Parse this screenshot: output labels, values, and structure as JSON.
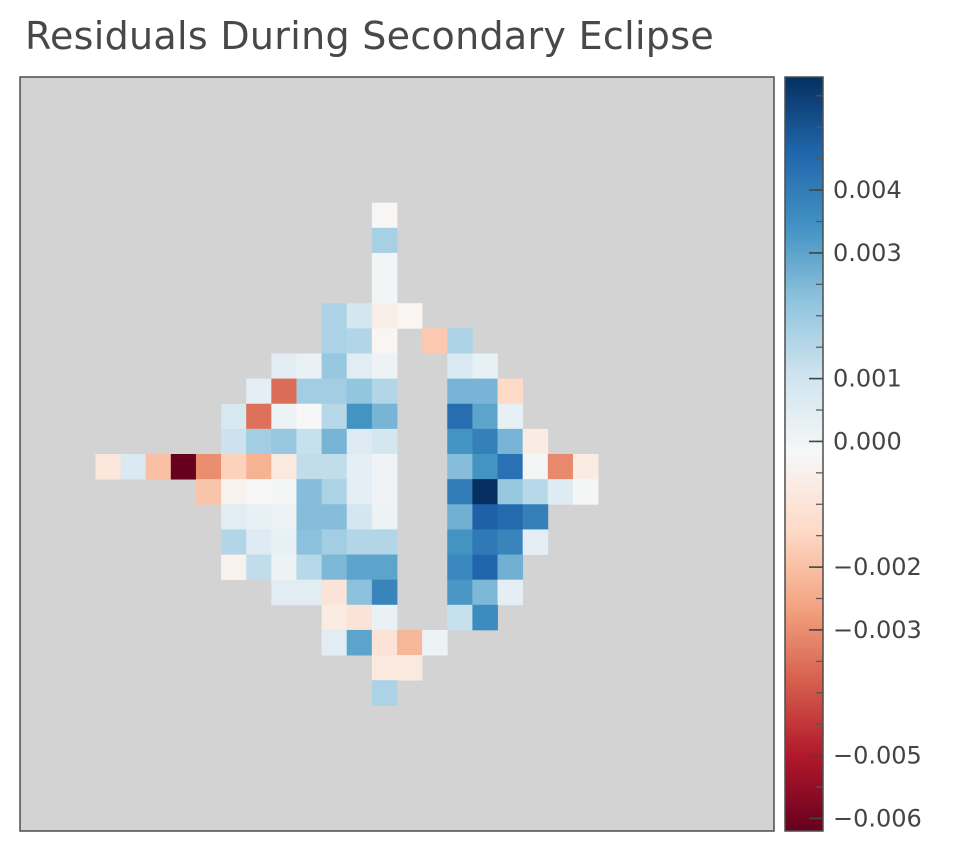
{
  "chart_data": {
    "type": "heatmap",
    "title": "Residuals During Secondary Eclipse",
    "background_color": "#d3d3d3",
    "colormap": "RdBu",
    "vmin": -0.0062,
    "vmax": 0.0058,
    "colorbar": {
      "tick_labels": [
        "0.004",
        "0.003",
        "0.001",
        "0.000",
        "−0.002",
        "−0.003",
        "−0.005",
        "−0.006"
      ],
      "tick_values": [
        0.004,
        0.003,
        0.001,
        0.0,
        -0.002,
        -0.003,
        -0.005,
        -0.006
      ]
    },
    "grid_size": 30,
    "cells": [
      {
        "row": 5,
        "col": 14,
        "value": -0.00025
      },
      {
        "row": 6,
        "col": 14,
        "value": 0.0018
      },
      {
        "row": 7,
        "col": 14,
        "value": -5e-05
      },
      {
        "row": 8,
        "col": 14,
        "value": -5e-05
      },
      {
        "row": 9,
        "col": 12,
        "value": 0.0017
      },
      {
        "row": 9,
        "col": 13,
        "value": 0.0009
      },
      {
        "row": 9,
        "col": 14,
        "value": -0.0006
      },
      {
        "row": 9,
        "col": 15,
        "value": -0.0003
      },
      {
        "row": 10,
        "col": 12,
        "value": 0.0017
      },
      {
        "row": 10,
        "col": 13,
        "value": 0.0016
      },
      {
        "row": 10,
        "col": 14,
        "value": -0.0003
      },
      {
        "row": 10,
        "col": 16,
        "value": -0.0018
      },
      {
        "row": 10,
        "col": 17,
        "value": 0.0017
      },
      {
        "row": 11,
        "col": 10,
        "value": 0.0005
      },
      {
        "row": 11,
        "col": 11,
        "value": 0.0002
      },
      {
        "row": 11,
        "col": 12,
        "value": 0.0021
      },
      {
        "row": 11,
        "col": 13,
        "value": 0.0005
      },
      {
        "row": 11,
        "col": 14,
        "value": 0.0001
      },
      {
        "row": 11,
        "col": 17,
        "value": 0.0007
      },
      {
        "row": 11,
        "col": 18,
        "value": 0.0003
      },
      {
        "row": 12,
        "col": 9,
        "value": 0.0004
      },
      {
        "row": 12,
        "col": 10,
        "value": -0.0036
      },
      {
        "row": 12,
        "col": 11,
        "value": 0.0019
      },
      {
        "row": 12,
        "col": 12,
        "value": 0.0019
      },
      {
        "row": 12,
        "col": 13,
        "value": 0.0022
      },
      {
        "row": 12,
        "col": 14,
        "value": 0.0016
      },
      {
        "row": 12,
        "col": 17,
        "value": 0.0026
      },
      {
        "row": 12,
        "col": 18,
        "value": 0.0026
      },
      {
        "row": 12,
        "col": 19,
        "value": -0.0014
      },
      {
        "row": 13,
        "col": 8,
        "value": 0.0008
      },
      {
        "row": 13,
        "col": 9,
        "value": -0.0035
      },
      {
        "row": 13,
        "col": 10,
        "value": 0.0001
      },
      {
        "row": 13,
        "col": 11,
        "value": -0.0002
      },
      {
        "row": 13,
        "col": 12,
        "value": 0.0015
      },
      {
        "row": 13,
        "col": 13,
        "value": 0.0034
      },
      {
        "row": 13,
        "col": 14,
        "value": 0.0026
      },
      {
        "row": 13,
        "col": 17,
        "value": 0.0044
      },
      {
        "row": 13,
        "col": 18,
        "value": 0.003
      },
      {
        "row": 13,
        "col": 19,
        "value": 0.0003
      },
      {
        "row": 14,
        "col": 8,
        "value": 0.0011
      },
      {
        "row": 14,
        "col": 9,
        "value": 0.0019
      },
      {
        "row": 14,
        "col": 10,
        "value": 0.0021
      },
      {
        "row": 14,
        "col": 11,
        "value": 0.0012
      },
      {
        "row": 14,
        "col": 12,
        "value": 0.0026
      },
      {
        "row": 14,
        "col": 13,
        "value": 0.0006
      },
      {
        "row": 14,
        "col": 14,
        "value": 0.0009
      },
      {
        "row": 14,
        "col": 17,
        "value": 0.0034
      },
      {
        "row": 14,
        "col": 18,
        "value": 0.0039
      },
      {
        "row": 14,
        "col": 19,
        "value": 0.0026
      },
      {
        "row": 14,
        "col": 20,
        "value": -0.0007
      },
      {
        "row": 15,
        "col": 3,
        "value": -0.0009
      },
      {
        "row": 15,
        "col": 4,
        "value": 0.0007
      },
      {
        "row": 15,
        "col": 5,
        "value": -0.002
      },
      {
        "row": 15,
        "col": 6,
        "value": -0.0062
      },
      {
        "row": 15,
        "col": 7,
        "value": -0.003
      },
      {
        "row": 15,
        "col": 8,
        "value": -0.0016
      },
      {
        "row": 15,
        "col": 9,
        "value": -0.0023
      },
      {
        "row": 15,
        "col": 10,
        "value": -0.0008
      },
      {
        "row": 15,
        "col": 11,
        "value": 0.0013
      },
      {
        "row": 15,
        "col": 12,
        "value": 0.0013
      },
      {
        "row": 15,
        "col": 13,
        "value": 0.0004
      },
      {
        "row": 15,
        "col": 14,
        "value": 5e-05
      },
      {
        "row": 15,
        "col": 17,
        "value": 0.0024
      },
      {
        "row": 15,
        "col": 18,
        "value": 0.0034
      },
      {
        "row": 15,
        "col": 19,
        "value": 0.0043
      },
      {
        "row": 15,
        "col": 20,
        "value": -0.0001
      },
      {
        "row": 15,
        "col": 21,
        "value": -0.0031
      },
      {
        "row": 15,
        "col": 22,
        "value": -0.0007
      },
      {
        "row": 16,
        "col": 7,
        "value": -0.0019
      },
      {
        "row": 16,
        "col": 8,
        "value": -0.0004
      },
      {
        "row": 16,
        "col": 9,
        "value": -0.0002
      },
      {
        "row": 16,
        "col": 10,
        "value": -0.0001
      },
      {
        "row": 16,
        "col": 11,
        "value": 0.0024
      },
      {
        "row": 16,
        "col": 12,
        "value": 0.0017
      },
      {
        "row": 16,
        "col": 13,
        "value": 0.0004
      },
      {
        "row": 16,
        "col": 14,
        "value": 5e-05
      },
      {
        "row": 16,
        "col": 17,
        "value": 0.004
      },
      {
        "row": 16,
        "col": 18,
        "value": 0.0058
      },
      {
        "row": 16,
        "col": 19,
        "value": 0.0021
      },
      {
        "row": 16,
        "col": 20,
        "value": 0.0015
      },
      {
        "row": 16,
        "col": 21,
        "value": 0.0006
      },
      {
        "row": 16,
        "col": 22,
        "value": -0.0001
      },
      {
        "row": 17,
        "col": 8,
        "value": 0.0005
      },
      {
        "row": 17,
        "col": 9,
        "value": 0.0003
      },
      {
        "row": 17,
        "col": 10,
        "value": 0.0001
      },
      {
        "row": 17,
        "col": 11,
        "value": 0.0024
      },
      {
        "row": 17,
        "col": 12,
        "value": 0.0024
      },
      {
        "row": 17,
        "col": 13,
        "value": 0.0009
      },
      {
        "row": 17,
        "col": 14,
        "value": 0.0001
      },
      {
        "row": 17,
        "col": 17,
        "value": 0.0027
      },
      {
        "row": 17,
        "col": 18,
        "value": 0.0047
      },
      {
        "row": 17,
        "col": 19,
        "value": 0.0045
      },
      {
        "row": 17,
        "col": 20,
        "value": 0.0039
      },
      {
        "row": 18,
        "col": 8,
        "value": 0.0016
      },
      {
        "row": 18,
        "col": 9,
        "value": 0.0006
      },
      {
        "row": 18,
        "col": 10,
        "value": 0.0003
      },
      {
        "row": 18,
        "col": 11,
        "value": 0.0023
      },
      {
        "row": 18,
        "col": 12,
        "value": 0.0019
      },
      {
        "row": 18,
        "col": 13,
        "value": 0.0016
      },
      {
        "row": 18,
        "col": 14,
        "value": 0.0016
      },
      {
        "row": 18,
        "col": 17,
        "value": 0.0034
      },
      {
        "row": 18,
        "col": 18,
        "value": 0.0041
      },
      {
        "row": 18,
        "col": 19,
        "value": 0.0038
      },
      {
        "row": 18,
        "col": 20,
        "value": 0.0004
      },
      {
        "row": 19,
        "col": 8,
        "value": -0.0004
      },
      {
        "row": 19,
        "col": 9,
        "value": 0.0013
      },
      {
        "row": 19,
        "col": 10,
        "value": 0.0001
      },
      {
        "row": 19,
        "col": 11,
        "value": 0.0015
      },
      {
        "row": 19,
        "col": 12,
        "value": 0.0025
      },
      {
        "row": 19,
        "col": 13,
        "value": 0.003
      },
      {
        "row": 19,
        "col": 14,
        "value": 0.003
      },
      {
        "row": 19,
        "col": 17,
        "value": 0.0037
      },
      {
        "row": 19,
        "col": 18,
        "value": 0.0046
      },
      {
        "row": 19,
        "col": 19,
        "value": 0.0027
      },
      {
        "row": 20,
        "col": 10,
        "value": 0.0005
      },
      {
        "row": 20,
        "col": 11,
        "value": 0.0005
      },
      {
        "row": 20,
        "col": 12,
        "value": -0.001
      },
      {
        "row": 20,
        "col": 13,
        "value": 0.0023
      },
      {
        "row": 20,
        "col": 14,
        "value": 0.0038
      },
      {
        "row": 20,
        "col": 17,
        "value": 0.0033
      },
      {
        "row": 20,
        "col": 18,
        "value": 0.0025
      },
      {
        "row": 20,
        "col": 19,
        "value": 0.0004
      },
      {
        "row": 21,
        "col": 12,
        "value": -0.0007
      },
      {
        "row": 21,
        "col": 13,
        "value": -0.001
      },
      {
        "row": 21,
        "col": 14,
        "value": 0.0002
      },
      {
        "row": 21,
        "col": 17,
        "value": 0.0012
      },
      {
        "row": 21,
        "col": 18,
        "value": 0.0036
      },
      {
        "row": 22,
        "col": 12,
        "value": 0.0005
      },
      {
        "row": 22,
        "col": 13,
        "value": 0.003
      },
      {
        "row": 22,
        "col": 14,
        "value": -0.001
      },
      {
        "row": 22,
        "col": 15,
        "value": -0.0022
      },
      {
        "row": 22,
        "col": 16,
        "value": 0.0001
      },
      {
        "row": 23,
        "col": 14,
        "value": -0.0008
      },
      {
        "row": 23,
        "col": 15,
        "value": -0.0008
      },
      {
        "row": 24,
        "col": 14,
        "value": 0.0017
      }
    ]
  }
}
